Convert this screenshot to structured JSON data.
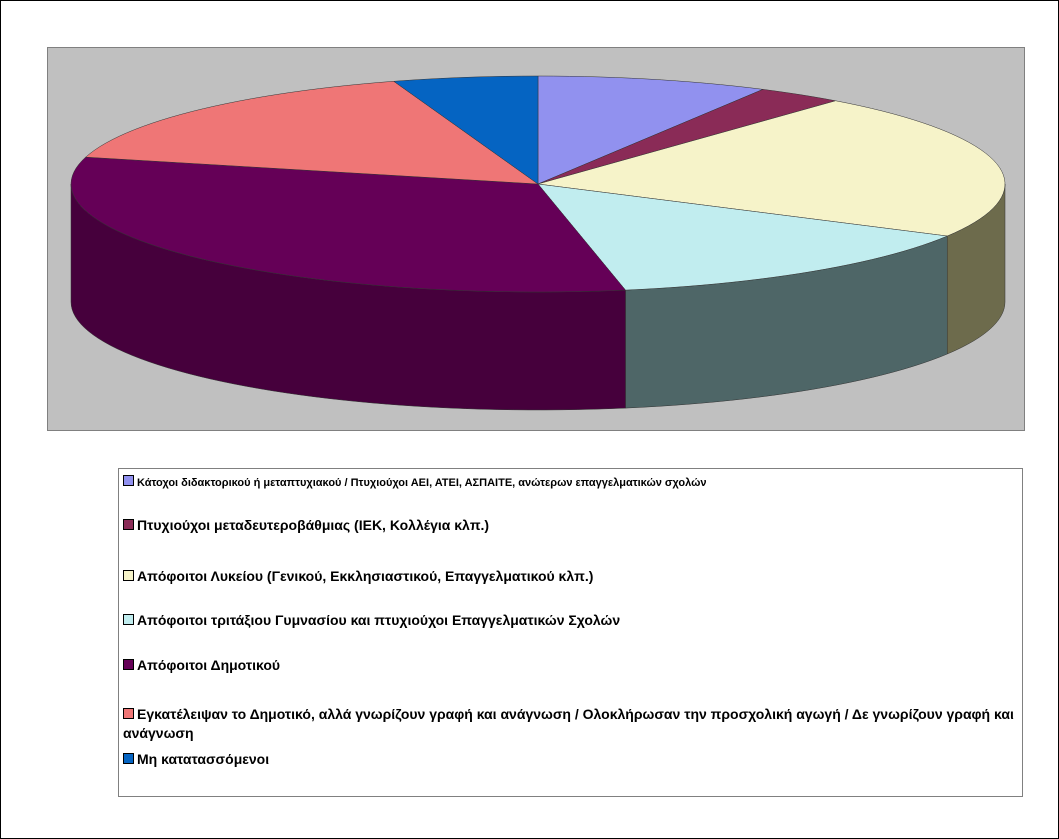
{
  "chart_data": {
    "type": "pie",
    "three_d": true,
    "categories": [
      "Κάτοχοι διδακτορικού ή μεταπτυχιακού / Πτυχιούχοι ΑΕΙ, ΑΤΕΙ, ΑΣΠΑΙΤΕ, ανώτερων επαγγελματικών  σχολών",
      "Πτυχιούχοι μεταδευτεροβάθμιας  (ΙΕΚ, Κολλέγια κλπ.)",
      "Απόφοιτοι Λυκείου (Γενικού, Εκκλησιαστικού, Επαγγελματικού κλπ.)",
      "Απόφοιτοι τριτάξιου Γυμνασίου και πτυχιούχοι Επαγγελματικών Σχολών",
      "Απόφοιτοι Δημοτικού",
      "Εγκατέλειψαν το Δημοτικό, αλλά γνωρίζουν γραφή και ανάγνωση / Ολοκλήρωσαν την προσχολική αγωγή / Δε γνωρίζουν γραφή και ανάγνωση",
      "Μη κατατασσόμενοι"
    ],
    "values": [
      8,
      3,
      22,
      14,
      32,
      16,
      5
    ],
    "colors": [
      "#9191ef",
      "#8a2b57",
      "#f6f3c9",
      "#c1edef",
      "#650057",
      "#ef7676",
      "#0564c2"
    ],
    "side_colors": [
      "#5a5a9a",
      "#561a36",
      "#6d6b4c",
      "#4e6667",
      "#46003c",
      "#9a4a4a",
      "#033a72"
    ]
  }
}
